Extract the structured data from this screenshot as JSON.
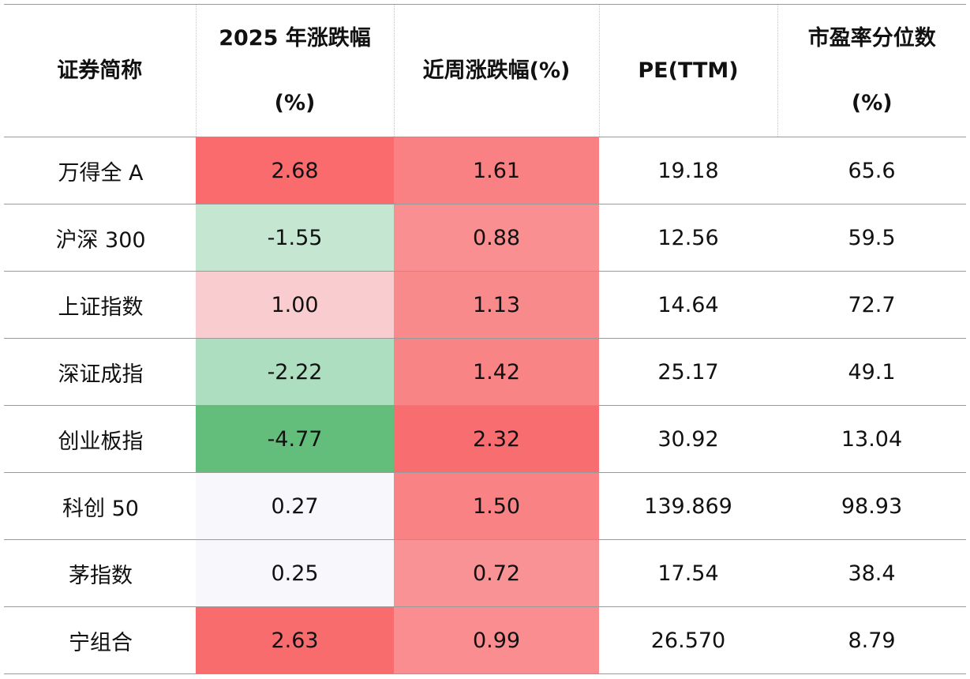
{
  "headers": {
    "name": "证券简称",
    "ytd_line1": "2025 年涨跌幅",
    "ytd_line2": "(%)",
    "week": "近周涨跌幅(%)",
    "pe": "PE(TTM)",
    "pct_line1": "市盈率分位数",
    "pct_line2": "(%)"
  },
  "rows": [
    {
      "name": "万得全 A",
      "ytd": "2.68",
      "week": "1.61",
      "pe": "19.18",
      "pct": "65.6",
      "ytd_color": "#f96b6d",
      "week_color": "#f98183"
    },
    {
      "name": "沪深 300",
      "ytd": "-1.55",
      "week": "0.88",
      "pe": "12.56",
      "pct": "59.5",
      "ytd_color": "#c5e6d1",
      "week_color": "#f98f91"
    },
    {
      "name": "上证指数",
      "ytd": "1.00",
      "week": "1.13",
      "pe": "14.64",
      "pct": "72.7",
      "ytd_color": "#f9ccd0",
      "week_color": "#f98a8c"
    },
    {
      "name": "深证成指",
      "ytd": "-2.22",
      "week": "1.42",
      "pe": "25.17",
      "pct": "49.1",
      "ytd_color": "#addebf",
      "week_color": "#f98486"
    },
    {
      "name": "创业板指",
      "ytd": "-4.77",
      "week": "2.32",
      "pe": "30.92",
      "pct": "13.04",
      "ytd_color": "#63be7b",
      "week_color": "#f86e70"
    },
    {
      "name": "科创 50",
      "ytd": "0.27",
      "week": "1.50",
      "pe": "139.869",
      "pct": "98.93",
      "ytd_color": "#f8f8fc",
      "week_color": "#f98284"
    },
    {
      "name": "茅指数",
      "ytd": "0.25",
      "week": "0.72",
      "pe": "17.54",
      "pct": "38.4",
      "ytd_color": "#f8f8fc",
      "week_color": "#f99294"
    },
    {
      "name": "宁组合",
      "ytd": "2.63",
      "week": "0.99",
      "pe": "26.570",
      "pct": "8.79",
      "ytd_color": "#f96c6e",
      "week_color": "#f98d8f"
    }
  ]
}
